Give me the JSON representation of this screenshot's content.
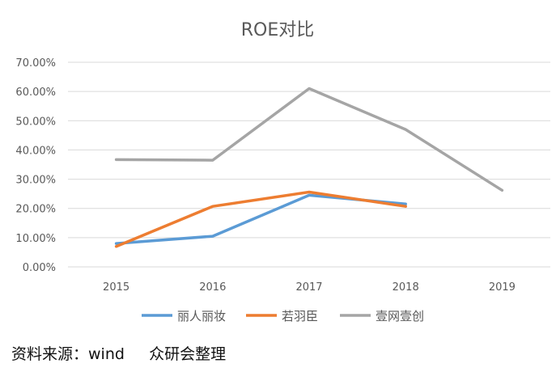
{
  "chart_data": {
    "type": "line",
    "title": "ROE对比",
    "categories": [
      "2015",
      "2016",
      "2017",
      "2018",
      "2019"
    ],
    "y_ticks": [
      "0.00%",
      "10.00%",
      "20.00%",
      "30.00%",
      "40.00%",
      "50.00%",
      "60.00%",
      "70.00%"
    ],
    "ylim": [
      0,
      70
    ],
    "grid": true,
    "legend_position": "bottom",
    "series": [
      {
        "name": "丽人丽妆",
        "color": "#5b9bd5",
        "values": [
          8.0,
          10.5,
          24.5,
          21.5,
          null
        ]
      },
      {
        "name": "若羽臣",
        "color": "#ed7d31",
        "values": [
          7.0,
          20.7,
          25.6,
          20.7,
          null
        ]
      },
      {
        "name": "壹网壹创",
        "color": "#a5a5a5",
        "values": [
          36.7,
          36.5,
          61.0,
          47.0,
          26.2
        ]
      }
    ]
  },
  "footer": {
    "source": "资料来源：wind     众研会整理"
  }
}
